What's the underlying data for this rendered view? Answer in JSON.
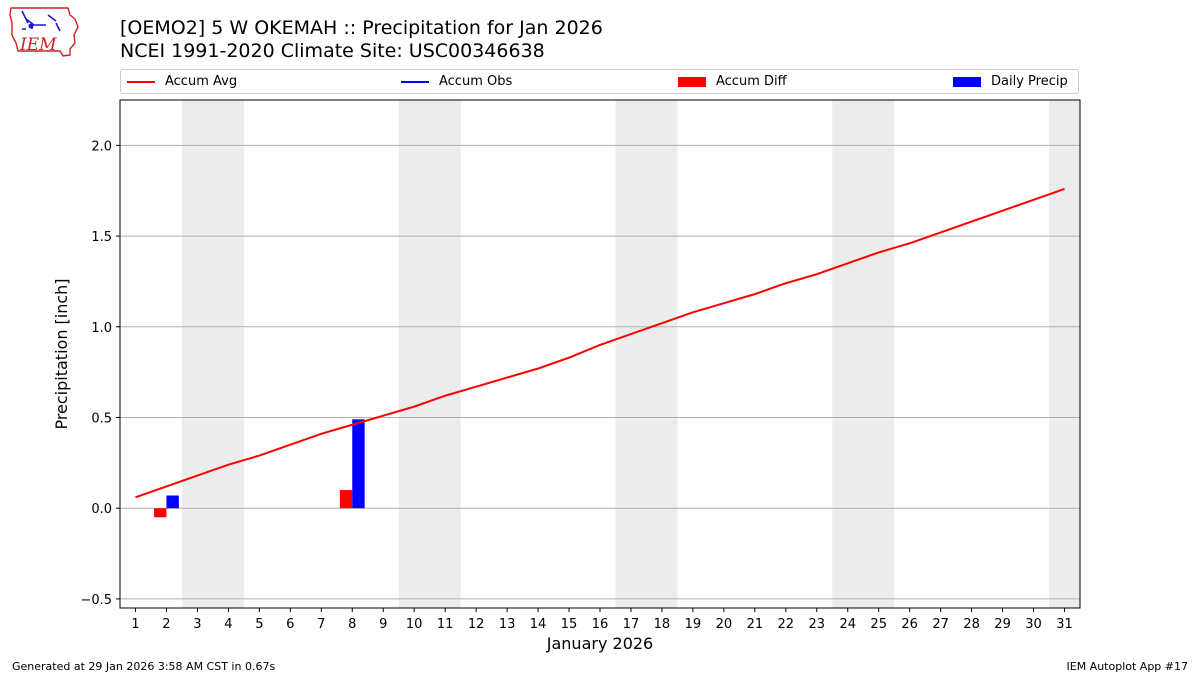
{
  "header": {
    "title_line1": "[OEMO2] 5 W OKEMAH :: Precipitation for Jan 2026",
    "title_line2": "NCEI 1991-2020 Climate Site: USC00346638"
  },
  "logo": {
    "text": "IEM",
    "icon": "iowa-state-outline-icon"
  },
  "legend": {
    "items": [
      {
        "label": "Accum Avg",
        "color": "#ff0000",
        "kind": "line"
      },
      {
        "label": "Accum Obs",
        "color": "#0000ff",
        "kind": "line"
      },
      {
        "label": "Accum Diff",
        "color": "#ff0000",
        "kind": "bar"
      },
      {
        "label": "Daily Precip",
        "color": "#0000ff",
        "kind": "bar"
      }
    ]
  },
  "footer": {
    "left": "Generated at 29 Jan 2026 3:58 AM CST in 0.67s",
    "right": "IEM Autoplot App #17"
  },
  "chart_data": {
    "type": "bar",
    "title": "[OEMO2] 5 W OKEMAH :: Precipitation for Jan 2026",
    "xlabel": "January 2026",
    "ylabel": "Precipitation [inch]",
    "xlim": [
      0.5,
      31.5
    ],
    "ylim": [
      -0.55,
      2.25
    ],
    "yticks": [
      -0.5,
      0.0,
      0.5,
      1.0,
      1.5,
      2.0
    ],
    "ytick_labels": [
      "−0.5",
      "0.0",
      "0.5",
      "1.0",
      "1.5",
      "2.0"
    ],
    "xticks": [
      1,
      2,
      3,
      4,
      5,
      6,
      7,
      8,
      9,
      10,
      11,
      12,
      13,
      14,
      15,
      16,
      17,
      18,
      19,
      20,
      21,
      22,
      23,
      24,
      25,
      26,
      27,
      28,
      29,
      30,
      31
    ],
    "grid": "horizontal",
    "weekend_bands": [
      [
        3,
        4
      ],
      [
        10,
        11
      ],
      [
        17,
        18
      ],
      [
        24,
        25
      ],
      [
        31,
        31
      ]
    ],
    "series": [
      {
        "name": "Accum Avg",
        "type": "line",
        "color": "#ff0000",
        "x": [
          1,
          2,
          3,
          4,
          5,
          6,
          7,
          8,
          9,
          10,
          11,
          12,
          13,
          14,
          15,
          16,
          17,
          18,
          19,
          20,
          21,
          22,
          23,
          24,
          25,
          26,
          27,
          28,
          29,
          30,
          31
        ],
        "values": [
          0.06,
          0.12,
          0.18,
          0.24,
          0.29,
          0.35,
          0.41,
          0.46,
          0.51,
          0.56,
          0.62,
          0.67,
          0.72,
          0.77,
          0.83,
          0.9,
          0.96,
          1.02,
          1.08,
          1.13,
          1.18,
          1.24,
          1.29,
          1.35,
          1.41,
          1.46,
          1.52,
          1.58,
          1.64,
          1.7,
          1.76
        ]
      },
      {
        "name": "Accum Obs",
        "type": "line",
        "color": "#0000ff",
        "x": [],
        "values": []
      },
      {
        "name": "Accum Diff",
        "type": "bar",
        "color": "#ff0000",
        "x": [
          2,
          8
        ],
        "values": [
          -0.05,
          0.1
        ]
      },
      {
        "name": "Daily Precip",
        "type": "bar",
        "color": "#0000ff",
        "x": [
          2,
          8
        ],
        "values": [
          0.07,
          0.49
        ]
      }
    ]
  }
}
